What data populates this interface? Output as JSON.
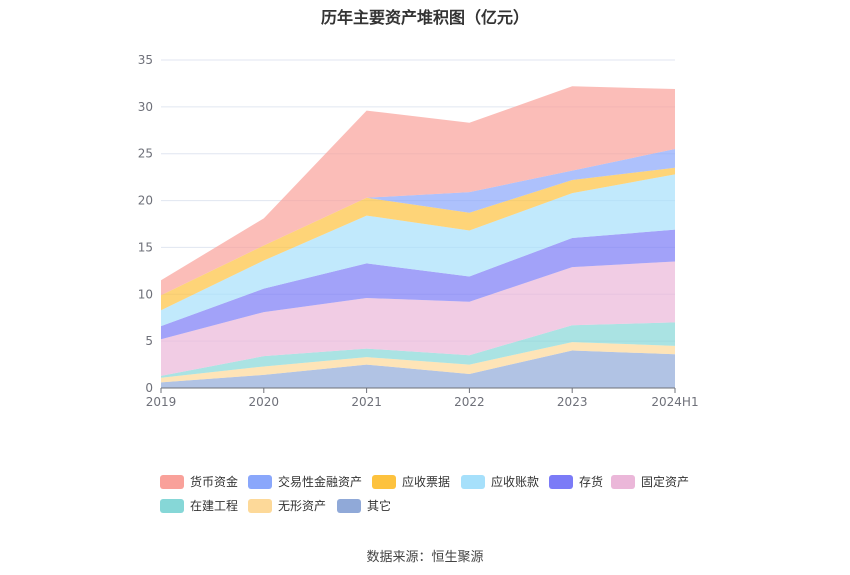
{
  "chart_data": {
    "type": "area",
    "stacked": true,
    "title": "历年主要资产堆积图（亿元）",
    "categories": [
      "2019",
      "2020",
      "2021",
      "2022",
      "2023",
      "2024H1"
    ],
    "ylim": [
      0,
      35
    ],
    "yticks": [
      0,
      5,
      10,
      15,
      20,
      25,
      30,
      35
    ],
    "grid": true,
    "legend_position": "bottom",
    "series": [
      {
        "name": "其它",
        "color": "#90a9d8",
        "values": [
          0.6,
          1.4,
          2.5,
          1.5,
          4.0,
          3.6
        ]
      },
      {
        "name": "无形资产",
        "color": "#fdd999",
        "values": [
          0.5,
          0.9,
          0.8,
          1.0,
          0.9,
          0.9
        ]
      },
      {
        "name": "在建工程",
        "color": "#86d7d7",
        "values": [
          0.2,
          1.1,
          0.9,
          1.0,
          1.8,
          2.5
        ]
      },
      {
        "name": "固定资产",
        "color": "#ebb7d9",
        "values": [
          3.9,
          4.7,
          5.4,
          5.7,
          6.2,
          6.5
        ]
      },
      {
        "name": "存货",
        "color": "#7b7bf7",
        "values": [
          1.4,
          2.5,
          3.7,
          2.7,
          3.1,
          3.4
        ]
      },
      {
        "name": "应收账款",
        "color": "#a6e0fb",
        "values": [
          1.7,
          3.0,
          5.1,
          4.9,
          4.8,
          5.9
        ]
      },
      {
        "name": "应收票据",
        "color": "#fdc23e",
        "values": [
          1.6,
          1.6,
          1.9,
          1.9,
          1.4,
          0.7
        ]
      },
      {
        "name": "交易性金融资产",
        "color": "#8aa7fb",
        "values": [
          0,
          0,
          0,
          2.2,
          1.0,
          2.0
        ]
      },
      {
        "name": "货币资金",
        "color": "#f9a19a",
        "values": [
          1.6,
          2.9,
          9.3,
          7.4,
          9.0,
          6.4
        ]
      }
    ],
    "legend_order": [
      "货币资金",
      "交易性金融资产",
      "应收票据",
      "应收账款",
      "存货",
      "固定资产",
      "在建工程",
      "无形资产",
      "其它"
    ]
  },
  "source": "数据来源：恒生聚源"
}
